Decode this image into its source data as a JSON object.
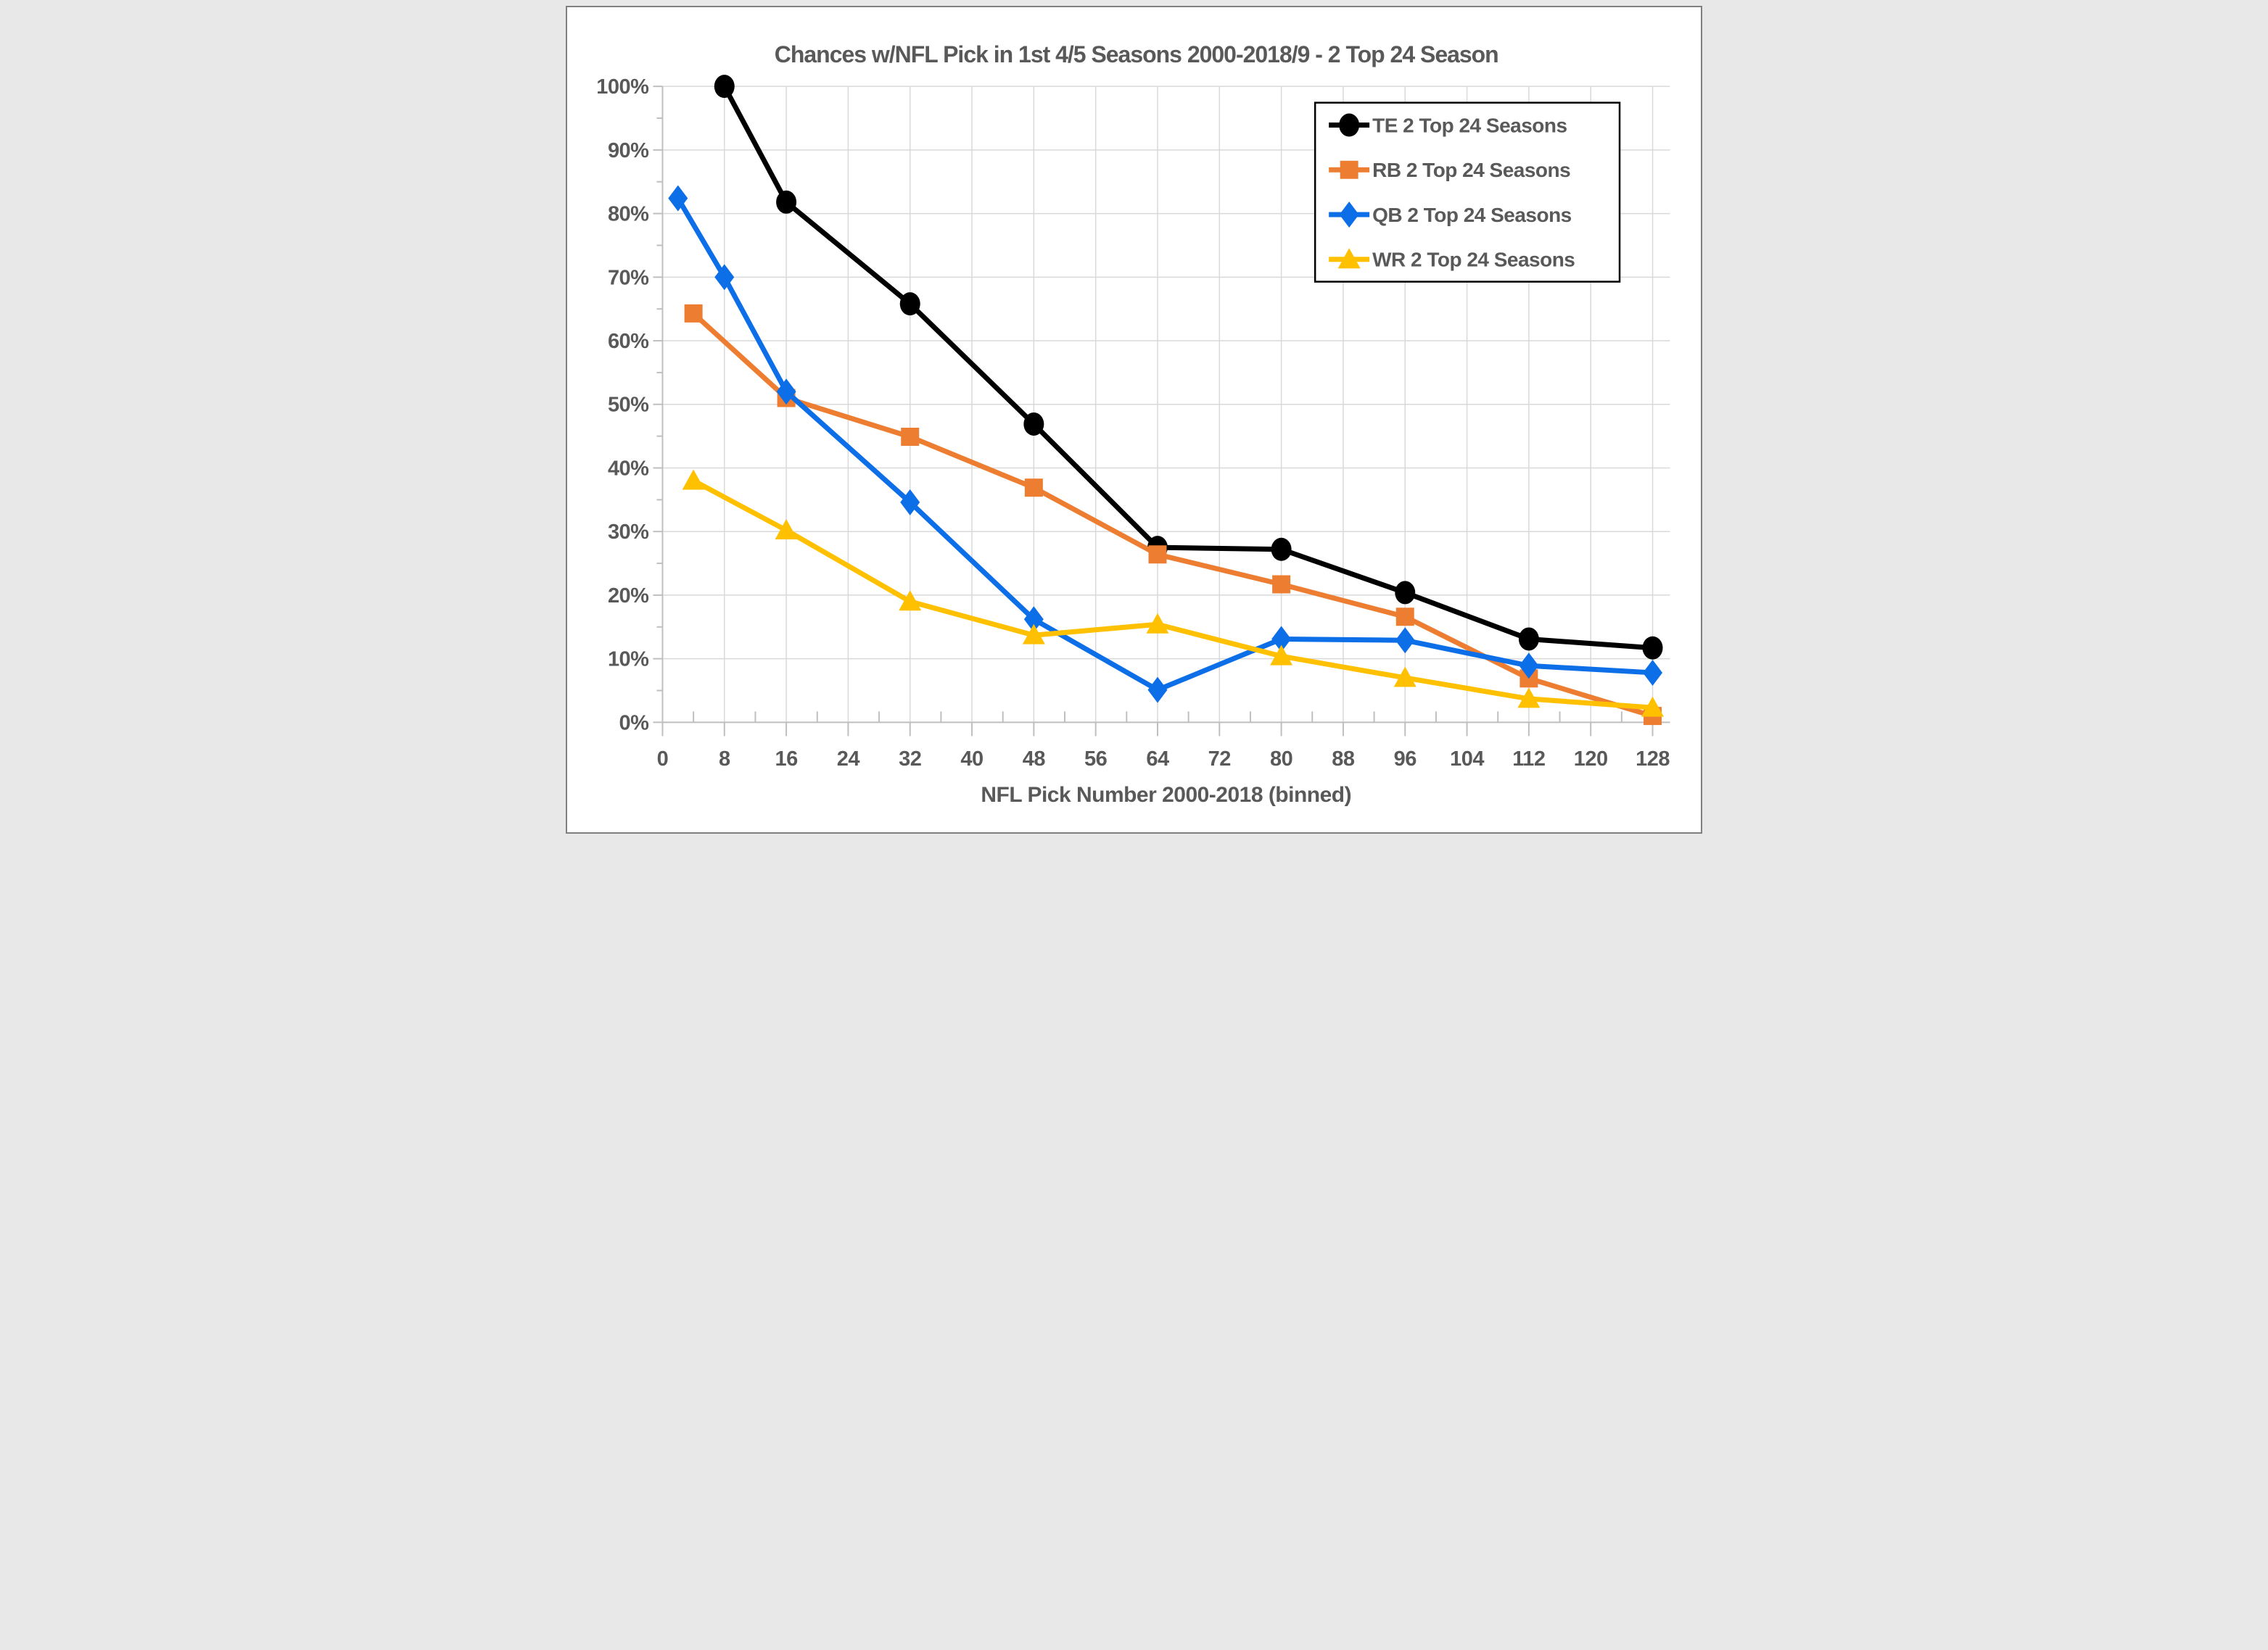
{
  "chart_data": {
    "type": "line",
    "title": "Chances w/NFL Pick in 1st 4/5 Seasons 2000-2018/9 - 2 Top 24 Season",
    "xlabel": "NFL Pick Number 2000-2018 (binned)",
    "ylabel": "",
    "xlim": [
      0,
      130
    ],
    "ylim": [
      0,
      100
    ],
    "x_ticks": [
      0,
      8,
      16,
      24,
      32,
      40,
      48,
      56,
      64,
      72,
      80,
      88,
      96,
      104,
      112,
      120,
      128
    ],
    "x_minor_tick_step": 4,
    "y_ticks": [
      0,
      10,
      20,
      30,
      40,
      50,
      60,
      70,
      80,
      90,
      100
    ],
    "y_minor_tick_step": 5,
    "y_tick_suffix": "%",
    "grid": true,
    "legend_position": "upper-right",
    "series": [
      {
        "name": "TE 2 Top 24 Seasons",
        "color": "#000000",
        "marker": "circle",
        "points": [
          [
            8,
            100
          ],
          [
            16,
            81.8
          ],
          [
            32,
            65.8
          ],
          [
            48,
            46.9
          ],
          [
            64,
            27.5
          ],
          [
            80,
            27.2
          ],
          [
            96,
            20.4
          ],
          [
            112,
            13.1
          ],
          [
            128,
            11.7
          ]
        ]
      },
      {
        "name": "RB 2 Top 24 Seasons",
        "color": "#ED7D31",
        "marker": "square",
        "points": [
          [
            4,
            64.3
          ],
          [
            16,
            51
          ],
          [
            32,
            44.9
          ],
          [
            48,
            36.9
          ],
          [
            64,
            26.4
          ],
          [
            80,
            21.7
          ],
          [
            96,
            16.6
          ],
          [
            112,
            6.9
          ],
          [
            128,
            1
          ]
        ]
      },
      {
        "name": "QB 2 Top 24 Seasons",
        "color": "#0D6FE8",
        "marker": "diamond",
        "points": [
          [
            2,
            82.4
          ],
          [
            8,
            70
          ],
          [
            16,
            52
          ],
          [
            32,
            34.6
          ],
          [
            48,
            16.2
          ],
          [
            64,
            5.1
          ],
          [
            80,
            13.1
          ],
          [
            96,
            12.9
          ],
          [
            112,
            8.9
          ],
          [
            128,
            7.8
          ]
        ]
      },
      {
        "name": "WR 2 Top 24 Seasons",
        "color": "#FFC000",
        "marker": "triangle",
        "points": [
          [
            4,
            38
          ],
          [
            16,
            30.2
          ],
          [
            32,
            19
          ],
          [
            48,
            13.7
          ],
          [
            64,
            15.4
          ],
          [
            80,
            10.4
          ],
          [
            96,
            7
          ],
          [
            112,
            3.7
          ],
          [
            128,
            2.3
          ]
        ]
      }
    ],
    "style": {
      "gridline_color": "#D9D9D9",
      "axis_color": "#BFBFBF",
      "text_color": "#595959",
      "background_color": "#FFFFFF",
      "legend_border_color": "#000000",
      "outer_border_color": "#808080"
    }
  }
}
